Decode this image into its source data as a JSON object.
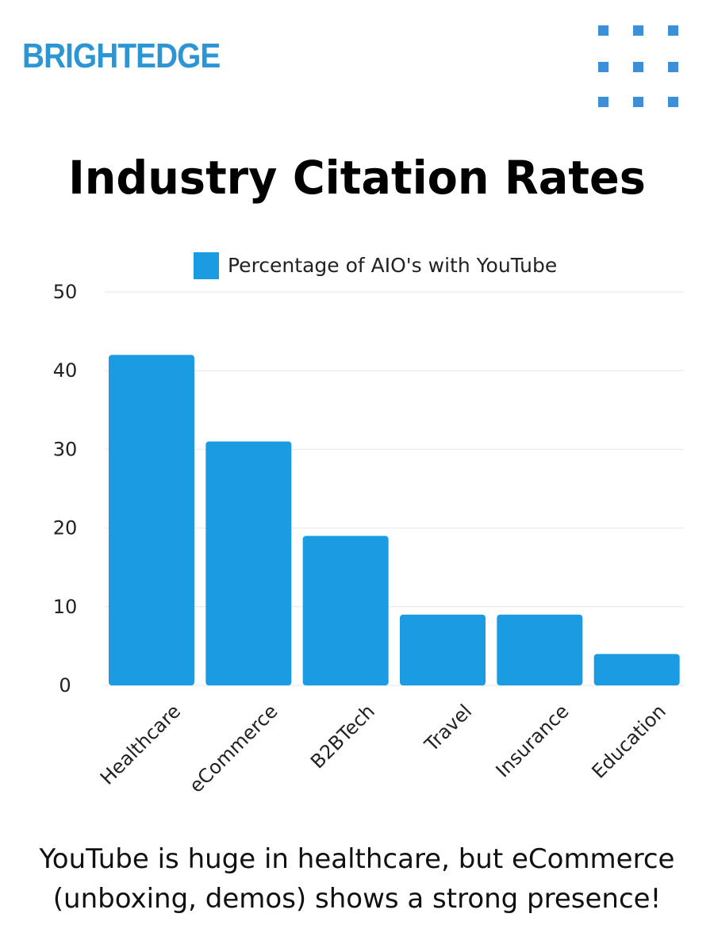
{
  "brand": {
    "name": "BRIGHTEDGE",
    "accent": "#2b96d3"
  },
  "title": "Industry Citation Rates",
  "chart_data": {
    "type": "bar",
    "categories": [
      "Healthcare",
      "eCommerce",
      "B2BTech",
      "Travel",
      "Insurance",
      "Education"
    ],
    "series": [
      {
        "name": "Percentage of AIO's with YouTube",
        "values": [
          42,
          31,
          19,
          9,
          9,
          4
        ],
        "color": "#1b9ce2"
      }
    ],
    "ylim": [
      0,
      50
    ],
    "yticks": [
      "0",
      "10",
      "20",
      "30",
      "40",
      "50"
    ],
    "grid": true,
    "legend": "top-center",
    "title": "",
    "xlabel": "",
    "ylabel": ""
  },
  "caption": {
    "line1": "YouTube is huge in healthcare, but eCommerce",
    "line2": "(unboxing, demos) shows a strong presence!"
  }
}
